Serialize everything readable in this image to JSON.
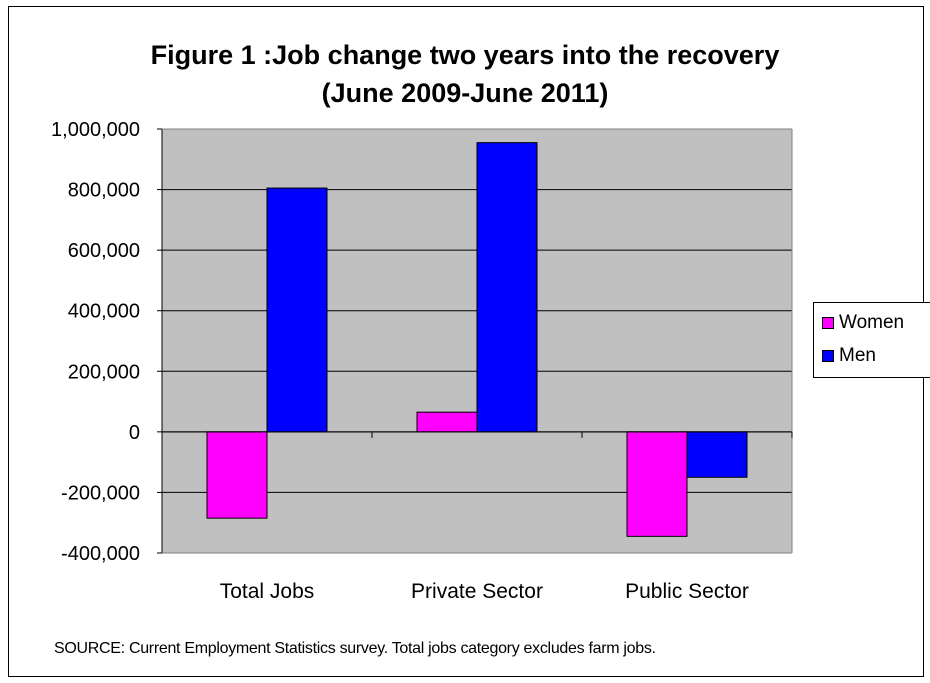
{
  "chart_data": {
    "type": "bar",
    "title": "Figure 1 :Job change two years into the recovery",
    "subtitle": "(June 2009-June 2011)",
    "categories": [
      "Total Jobs",
      "Private Sector",
      "Public Sector"
    ],
    "series": [
      {
        "name": "Women",
        "values": [
          -285000,
          65000,
          -345000
        ],
        "color": "#FF00FF"
      },
      {
        "name": "Men",
        "values": [
          805000,
          955000,
          -150000
        ],
        "color": "#0000FF"
      }
    ],
    "ylim": [
      -400000,
      1000000
    ],
    "yticks": [
      -400000,
      -200000,
      0,
      200000,
      400000,
      600000,
      800000,
      1000000
    ],
    "ytick_labels": [
      "-400,000",
      "-200,000",
      "0",
      "200,000",
      "400,000",
      "600,000",
      "800,000",
      "1,000,000"
    ],
    "grid": true,
    "plot_background": "#C0C0C0",
    "legend_position": "right",
    "xlabel": "",
    "ylabel": ""
  },
  "source_note": "SOURCE: Current Employment Statistics survey.  Total jobs category excludes farm jobs."
}
